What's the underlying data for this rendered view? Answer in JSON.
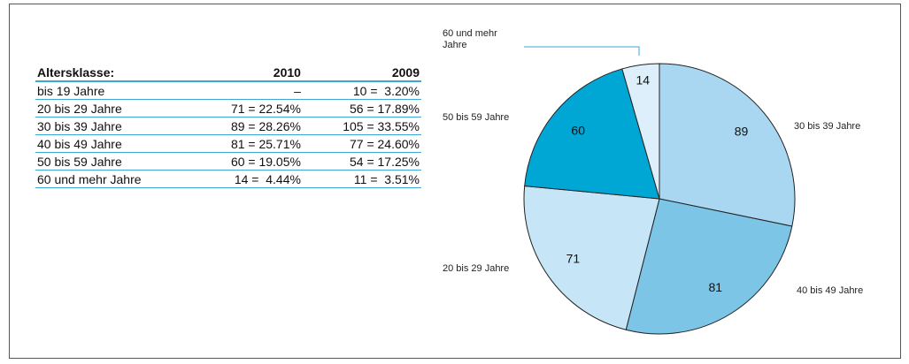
{
  "table": {
    "header": [
      "Altersklasse:",
      "2010",
      "2009"
    ],
    "rows": [
      [
        "bis 19 Jahre",
        "–",
        "10 =  3.20%"
      ],
      [
        "20 bis 29 Jahre",
        "71 = 22.54%",
        "56 = 17.89%"
      ],
      [
        "30 bis 39 Jahre",
        "89 = 28.26%",
        "105 = 33.55%"
      ],
      [
        "40 bis 49 Jahre",
        "81 = 25.71%",
        "77 = 24.60%"
      ],
      [
        "50 bis 59 Jahre",
        "60 = 19.05%",
        "54 = 17.25%"
      ],
      [
        "60 und mehr Jahre",
        "14 =  4.44%",
        "11 =  3.51%"
      ]
    ]
  },
  "chart_data": {
    "type": "pie",
    "categories": [
      "30 bis 39 Jahre",
      "40 bis 49 Jahre",
      "20 bis 29 Jahre",
      "50 bis 59 Jahre",
      "60 und mehr Jahre"
    ],
    "values": [
      89,
      81,
      71,
      60,
      14
    ],
    "colors": [
      "#a9d6f0",
      "#7cc5e7",
      "#c6e6f7",
      "#00a7d5",
      "#ddeffa"
    ]
  }
}
